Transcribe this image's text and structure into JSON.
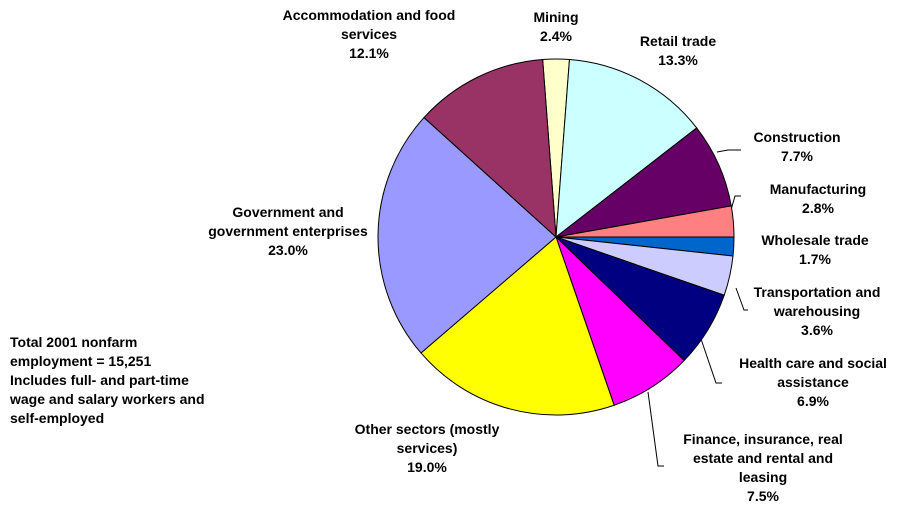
{
  "chart_data": {
    "type": "pie",
    "categories": [
      "Mining",
      "Retail trade",
      "Construction",
      "Manufacturing",
      "Wholesale trade",
      "Transportation and warehousing",
      "Health care and social assistance",
      "Finance, insurance, real estate and rental and leasing",
      "Other sectors (mostly services)",
      "Government and government enterprises",
      "Accommodation and food services"
    ],
    "values": [
      2.4,
      13.3,
      7.7,
      2.8,
      1.7,
      3.6,
      6.9,
      7.5,
      19.0,
      23.0,
      12.1
    ],
    "value_labels": [
      "2.4%",
      "13.3%",
      "7.7%",
      "2.8%",
      "1.7%",
      "3.6%",
      "6.9%",
      "7.5%",
      "19.0%",
      "23.0%",
      "12.1%"
    ],
    "colors": [
      "#ffffcc",
      "#ccffff",
      "#660066",
      "#ff8080",
      "#0066cc",
      "#ccccff",
      "#000080",
      "#ff00ff",
      "#ffff00",
      "#9999ff",
      "#993366"
    ],
    "notes": [
      "Total 2001 nonfarm employment  = 15,251",
      "Includes full- and part-time wage and salary workers and self-employed"
    ]
  }
}
